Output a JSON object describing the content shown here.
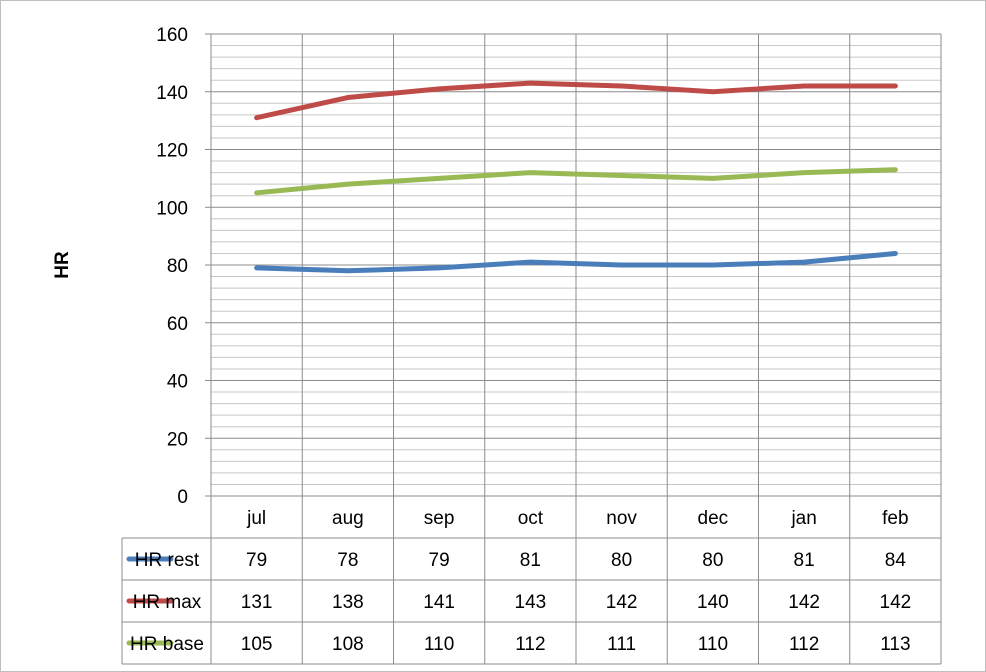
{
  "chart_data": {
    "type": "line",
    "title": "",
    "xlabel": "",
    "ylabel": "HR",
    "ylim": [
      0,
      160
    ],
    "y_major_ticks": [
      0,
      20,
      40,
      60,
      80,
      100,
      120,
      140,
      160
    ],
    "y_minor_step": 4,
    "grid": true,
    "legend": "data table below chart",
    "categories": [
      "jul",
      "aug",
      "sep",
      "oct",
      "nov",
      "dec",
      "jan",
      "feb"
    ],
    "series": [
      {
        "name": "HR rest",
        "color": "#4a7ebb",
        "values": [
          79,
          78,
          79,
          81,
          80,
          80,
          81,
          84
        ]
      },
      {
        "name": "HR max",
        "color": "#be4b48",
        "values": [
          131,
          138,
          141,
          143,
          142,
          140,
          142,
          142
        ]
      },
      {
        "name": "HR base",
        "color": "#98b954",
        "values": [
          105,
          108,
          110,
          112,
          111,
          110,
          112,
          113
        ]
      }
    ]
  }
}
